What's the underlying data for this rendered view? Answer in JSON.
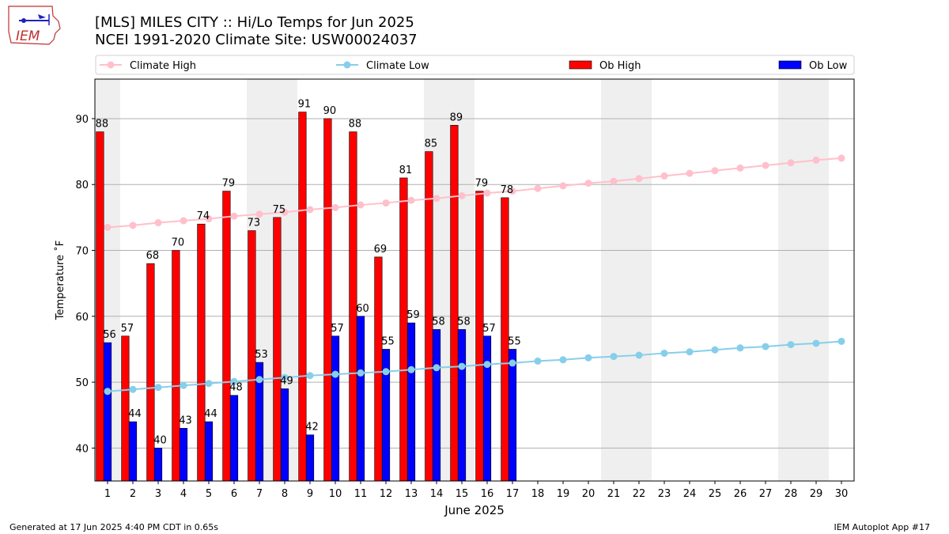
{
  "header": {
    "title_line1": "[MLS] MILES CITY :: Hi/Lo Temps for Jun 2025",
    "title_line2": "NCEI 1991-2020 Climate Site: USW00024037",
    "logo_text": "IEM"
  },
  "footer": {
    "generated": "Generated at 17 Jun 2025 4:40 PM CDT in 0.65s",
    "app": "IEM Autoplot App #17"
  },
  "chart_data": {
    "type": "bar",
    "xlabel": "June 2025",
    "ylabel": "Temperature ˚F",
    "ylim": [
      35,
      96
    ],
    "xlim": [
      0.5,
      30.5
    ],
    "yticks": [
      40,
      50,
      60,
      70,
      80,
      90
    ],
    "categories": [
      1,
      2,
      3,
      4,
      5,
      6,
      7,
      8,
      9,
      10,
      11,
      12,
      13,
      14,
      15,
      16,
      17,
      18,
      19,
      20,
      21,
      22,
      23,
      24,
      25,
      26,
      27,
      28,
      29,
      30
    ],
    "grid": "horizontal",
    "legend_placement": "top",
    "weekend_shading": [
      [
        1,
        1
      ],
      [
        7,
        8
      ],
      [
        14,
        15
      ],
      [
        21,
        22
      ],
      [
        28,
        29
      ]
    ],
    "series": [
      {
        "name": "Climate High",
        "type": "line",
        "color": "#ffc0cb",
        "x": [
          1,
          2,
          3,
          4,
          5,
          6,
          7,
          8,
          9,
          10,
          11,
          12,
          13,
          14,
          15,
          16,
          17,
          18,
          19,
          20,
          21,
          22,
          23,
          24,
          25,
          26,
          27,
          28,
          29,
          30
        ],
        "values": [
          73.5,
          73.8,
          74.2,
          74.5,
          74.8,
          75.2,
          75.5,
          75.8,
          76.2,
          76.5,
          76.9,
          77.2,
          77.6,
          77.9,
          78.3,
          78.7,
          79.0,
          79.4,
          79.8,
          80.2,
          80.5,
          80.9,
          81.3,
          81.7,
          82.1,
          82.5,
          82.9,
          83.3,
          83.7,
          84.0
        ]
      },
      {
        "name": "Climate Low",
        "type": "line",
        "color": "#87ceeb",
        "x": [
          1,
          2,
          3,
          4,
          5,
          6,
          7,
          8,
          9,
          10,
          11,
          12,
          13,
          14,
          15,
          16,
          17,
          18,
          19,
          20,
          21,
          22,
          23,
          24,
          25,
          26,
          27,
          28,
          29,
          30
        ],
        "values": [
          48.6,
          48.9,
          49.2,
          49.5,
          49.8,
          50.1,
          50.4,
          50.7,
          51.0,
          51.2,
          51.4,
          51.6,
          51.9,
          52.2,
          52.4,
          52.7,
          52.9,
          53.2,
          53.4,
          53.7,
          53.9,
          54.1,
          54.4,
          54.6,
          54.9,
          55.2,
          55.4,
          55.7,
          55.9,
          56.2
        ]
      },
      {
        "name": "Ob High",
        "type": "bar",
        "color": "#ff0000",
        "x": [
          1,
          2,
          3,
          4,
          5,
          6,
          7,
          8,
          9,
          10,
          11,
          12,
          13,
          14,
          15,
          16,
          17
        ],
        "values": [
          88,
          57,
          68,
          70,
          74,
          79,
          73,
          75,
          91,
          90,
          88,
          69,
          81,
          85,
          89,
          79,
          78
        ]
      },
      {
        "name": "Ob Low",
        "type": "bar",
        "color": "#0000ff",
        "x": [
          1,
          2,
          3,
          4,
          5,
          6,
          7,
          8,
          9,
          10,
          11,
          12,
          13,
          14,
          15,
          16,
          17
        ],
        "values": [
          56,
          44,
          40,
          43,
          44,
          48,
          53,
          49,
          42,
          57,
          60,
          55,
          59,
          58,
          58,
          57,
          55
        ]
      }
    ]
  }
}
